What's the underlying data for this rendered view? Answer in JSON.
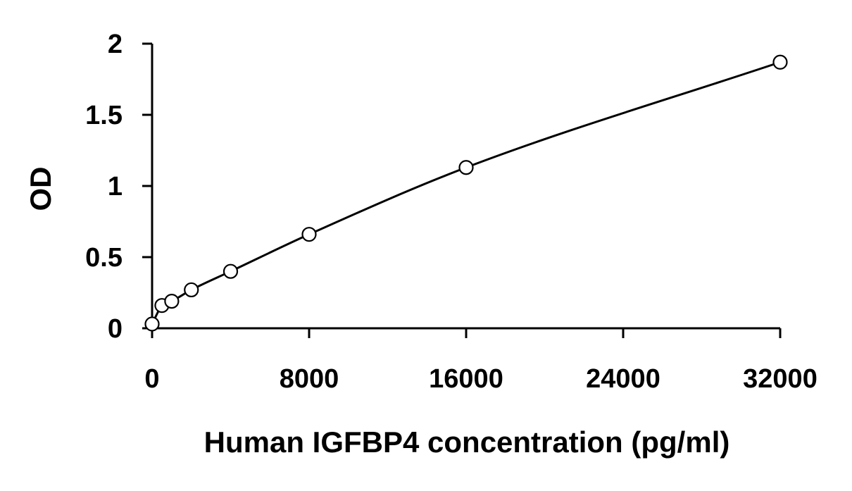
{
  "chart_data": {
    "type": "scatter",
    "title": "",
    "xlabel": "Human IGFBP4 concentration (pg/ml)",
    "ylabel": "OD",
    "xlim": [
      0,
      32000
    ],
    "ylim": [
      0,
      2
    ],
    "x_ticks": [
      "0",
      "8000",
      "16000",
      "24000",
      "32000"
    ],
    "y_ticks": [
      "0",
      "0.5",
      "1",
      "1.5",
      "2"
    ],
    "grid": false,
    "legend": "none",
    "series": [
      {
        "points": [
          {
            "x": 0,
            "y": 0.03
          },
          {
            "x": 500,
            "y": 0.16
          },
          {
            "x": 1000,
            "y": 0.19
          },
          {
            "x": 2000,
            "y": 0.27
          },
          {
            "x": 4000,
            "y": 0.4
          },
          {
            "x": 8000,
            "y": 0.66
          },
          {
            "x": 16000,
            "y": 1.13
          },
          {
            "x": 32000,
            "y": 1.87
          }
        ],
        "fit_curve": true
      }
    ],
    "colors": {
      "line": "#000000",
      "marker_stroke": "#000000",
      "marker_fill": "#ffffff"
    }
  }
}
